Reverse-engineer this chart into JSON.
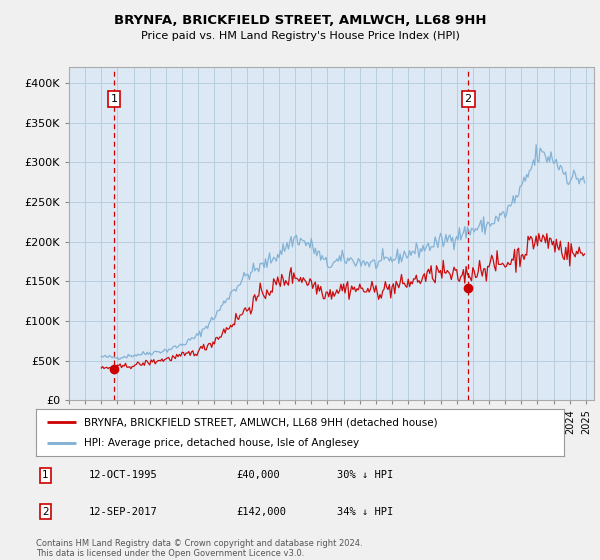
{
  "title": "BRYNFA, BRICKFIELD STREET, AMLWCH, LL68 9HH",
  "subtitle": "Price paid vs. HM Land Registry's House Price Index (HPI)",
  "legend_label_red": "BRYNFA, BRICKFIELD STREET, AMLWCH, LL68 9HH (detached house)",
  "legend_label_blue": "HPI: Average price, detached house, Isle of Anglesey",
  "annotation1_date": "12-OCT-1995",
  "annotation1_price": "£40,000",
  "annotation1_hpi": "30% ↓ HPI",
  "annotation2_date": "12-SEP-2017",
  "annotation2_price": "£142,000",
  "annotation2_hpi": "34% ↓ HPI",
  "footer": "Contains HM Land Registry data © Crown copyright and database right 2024.\nThis data is licensed under the Open Government Licence v3.0.",
  "ylim": [
    0,
    420000
  ],
  "yticks": [
    0,
    50000,
    100000,
    150000,
    200000,
    250000,
    300000,
    350000,
    400000
  ],
  "ytick_labels": [
    "£0",
    "£50K",
    "£100K",
    "£150K",
    "£200K",
    "£250K",
    "£300K",
    "£350K",
    "£400K"
  ],
  "background_color": "#f0f0f0",
  "plot_background": "#dce9f5",
  "grid_color": "#b8cfe0",
  "red_color": "#cc0000",
  "blue_color": "#7fafd4",
  "vline_color": "#cc0000",
  "marker1_x": 1995.79,
  "marker1_y": 40000,
  "marker2_x": 2017.71,
  "marker2_y": 142000,
  "xlim_left": 1993.0,
  "xlim_right": 2025.5
}
